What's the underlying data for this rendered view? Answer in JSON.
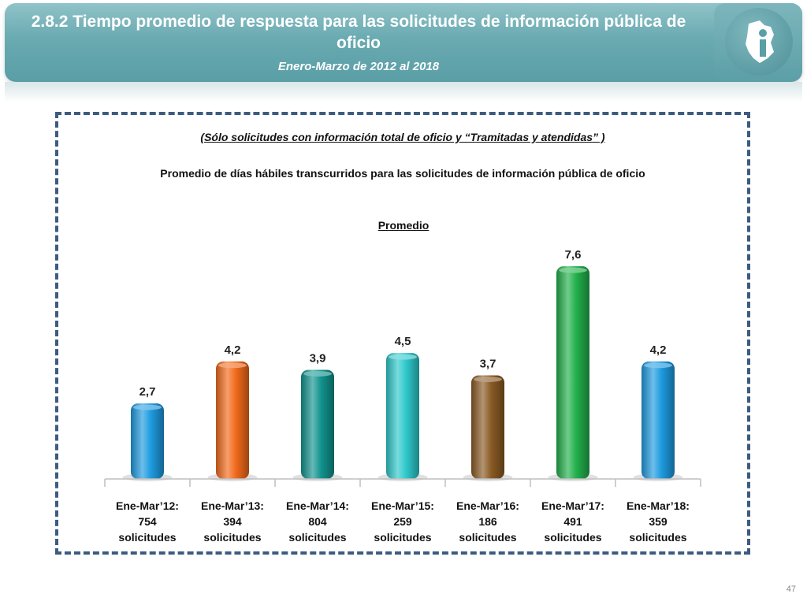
{
  "header": {
    "title": "2.8.2 Tiempo promedio de respuesta para las solicitudes de información pública de oficio",
    "subtitle": "Enero-Marzo de 2012 al 2018"
  },
  "note": "(Sólo solicitudes con información total de oficio y “Tramitadas y atendidas” )",
  "heading": "Promedio de días hábiles transcurridos para las solicitudes de información pública de oficio",
  "page_number": "47",
  "chart_data": {
    "type": "bar",
    "title": "Promedio",
    "categories": [
      {
        "period": "Ene-Mar’12:",
        "count": "754",
        "unit": "solicitudes"
      },
      {
        "period": "Ene-Mar’13:",
        "count": "394",
        "unit": "solicitudes"
      },
      {
        "period": "Ene-Mar’14:",
        "count": "804",
        "unit": "solicitudes"
      },
      {
        "period": "Ene-Mar’15:",
        "count": "259",
        "unit": "solicitudes"
      },
      {
        "period": "Ene-Mar’16:",
        "count": "186",
        "unit": "solicitudes"
      },
      {
        "period": "Ene-Mar’17:",
        "count": "491",
        "unit": "solicitudes"
      },
      {
        "period": "Ene-Mar’18:",
        "count": "359",
        "unit": "solicitudes"
      }
    ],
    "values": [
      2.7,
      4.2,
      3.9,
      4.5,
      3.7,
      7.6,
      4.2
    ],
    "value_labels": [
      "2,7",
      "4,2",
      "3,9",
      "4,5",
      "3,7",
      "7,6",
      "4,2"
    ],
    "colors": [
      "#1e9be0",
      "#f26a1b",
      "#12938e",
      "#2ec9cc",
      "#8a5a24",
      "#22b04b",
      "#1e9be0"
    ],
    "ylim": [
      0,
      8
    ],
    "grid": false,
    "legend": "none"
  }
}
